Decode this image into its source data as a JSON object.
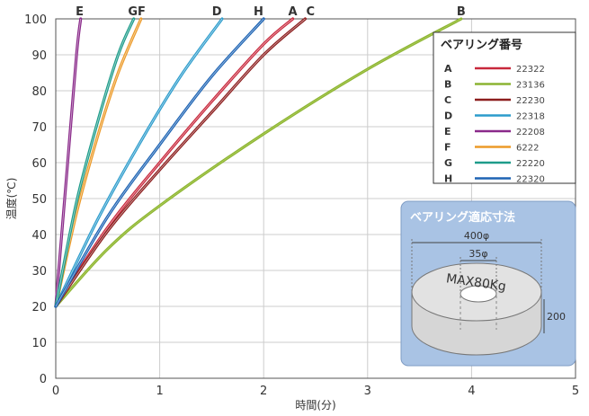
{
  "chart_data": {
    "type": "line",
    "title": "",
    "xlabel": "時間(分)",
    "ylabel": "温度(℃)",
    "xlim": [
      0,
      5
    ],
    "ylim": [
      0,
      100
    ],
    "x_ticks": [
      "0",
      "1",
      "2",
      "3",
      "4",
      "5"
    ],
    "y_ticks": [
      "0",
      "10",
      "20",
      "30",
      "40",
      "50",
      "60",
      "70",
      "80",
      "90",
      "100"
    ],
    "grid": true,
    "legend_title": "ベアリング番号",
    "legend_position": "top-right",
    "series": [
      {
        "name": "A",
        "part": "22322",
        "color": "#c8283c",
        "x": [
          0,
          0.5,
          1.0,
          1.5,
          2.0,
          2.28
        ],
        "y": [
          20,
          42,
          60,
          77,
          93,
          100
        ]
      },
      {
        "name": "B",
        "part": "23136",
        "color": "#8cb432",
        "x": [
          0,
          0.5,
          1.0,
          2.0,
          3.0,
          3.9
        ],
        "y": [
          20,
          36,
          48,
          68,
          86,
          100
        ]
      },
      {
        "name": "C",
        "part": "22230",
        "color": "#8c1e1e",
        "x": [
          0,
          0.5,
          1.0,
          1.5,
          2.0,
          2.4
        ],
        "y": [
          20,
          41,
          58,
          74,
          90,
          100
        ]
      },
      {
        "name": "D",
        "part": "22318",
        "color": "#2c9ccc",
        "x": [
          0,
          0.4,
          0.8,
          1.2,
          1.6
        ],
        "y": [
          20,
          44,
          65,
          84,
          100
        ]
      },
      {
        "name": "E",
        "part": "22208",
        "color": "#8a2a8a",
        "x": [
          0,
          0.1,
          0.2,
          0.24
        ],
        "y": [
          20,
          55,
          90,
          100
        ]
      },
      {
        "name": "F",
        "part": "6222",
        "color": "#ec9a28",
        "x": [
          0,
          0.2,
          0.4,
          0.6,
          0.82
        ],
        "y": [
          20,
          46,
          67,
          85,
          100
        ]
      },
      {
        "name": "G",
        "part": "22220",
        "color": "#1e9c8a",
        "x": [
          0,
          0.2,
          0.4,
          0.6,
          0.75
        ],
        "y": [
          20,
          49,
          71,
          90,
          100
        ]
      },
      {
        "name": "H",
        "part": "22320",
        "color": "#1e64b4",
        "x": [
          0,
          0.5,
          1.0,
          1.5,
          2.0
        ],
        "y": [
          20,
          45,
          65,
          84,
          100
        ]
      }
    ],
    "curve_labels": [
      {
        "text": "E",
        "x": 0.23
      },
      {
        "text": "GF",
        "x": 0.78
      },
      {
        "text": "D",
        "x": 1.55
      },
      {
        "text": "H",
        "x": 1.95
      },
      {
        "text": "A",
        "x": 2.28
      },
      {
        "text": "C",
        "x": 2.45
      },
      {
        "text": "B",
        "x": 3.9
      }
    ]
  },
  "inset": {
    "title": "ベアリング適応寸法",
    "outer_dim": "400φ",
    "inner_dim": "35φ",
    "load_text": "MAX80Kg",
    "height_dim": "200",
    "background_color": "#a9c3e4"
  }
}
